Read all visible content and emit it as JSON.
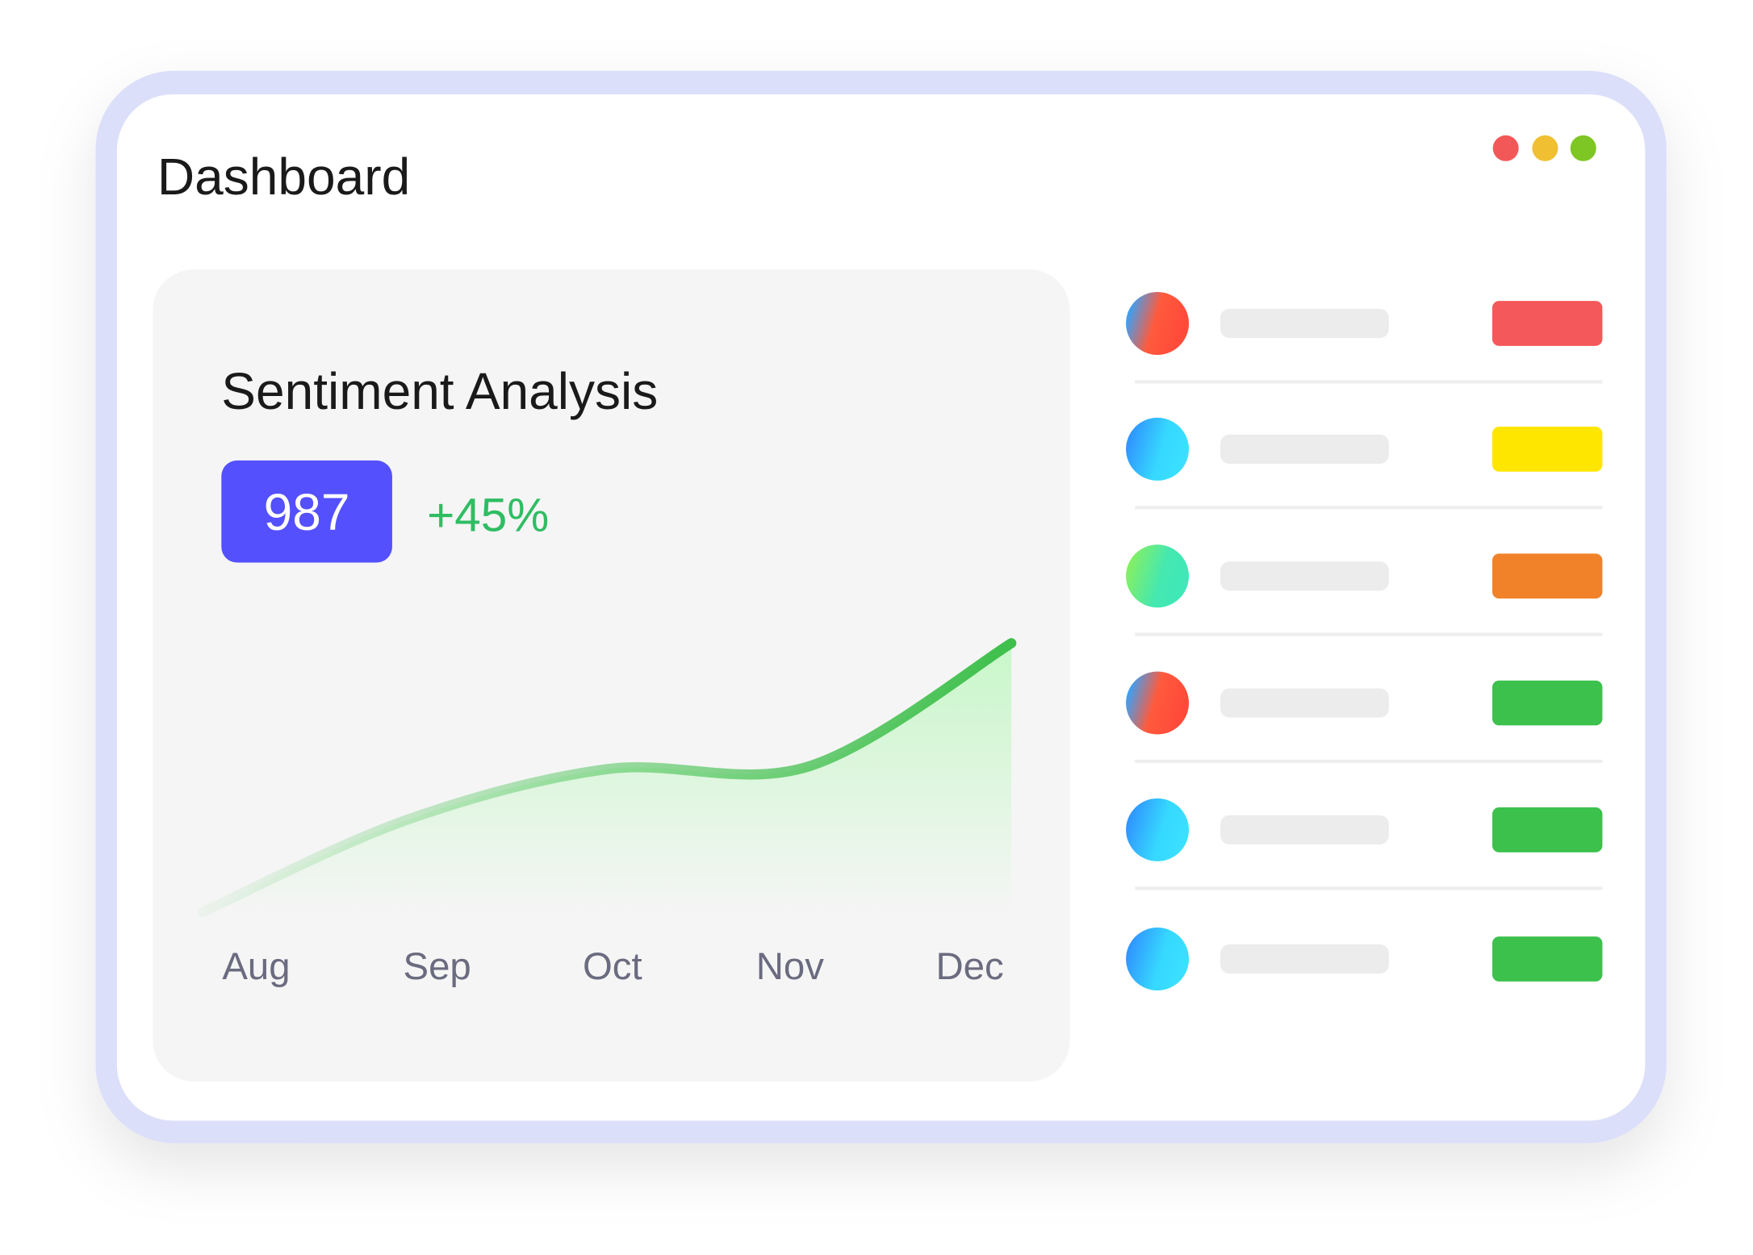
{
  "header": {
    "title": "Dashboard"
  },
  "card": {
    "title": "Sentiment Analysis",
    "value": "987",
    "change": "+45%"
  },
  "chart_data": {
    "type": "line",
    "categories": [
      "Aug",
      "Sep",
      "Oct",
      "Nov",
      "Dec"
    ],
    "values": [
      1,
      33,
      51,
      52,
      95
    ],
    "ylim": [
      0,
      100
    ],
    "color": "#3fbf4c"
  }
}
